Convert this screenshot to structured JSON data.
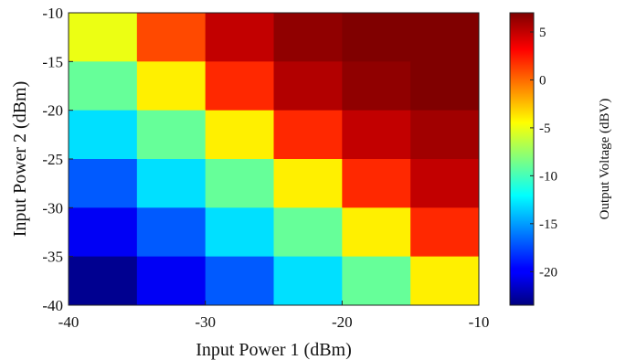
{
  "chart_data": {
    "type": "heatmap",
    "xlabel": "Input Power 1 (dBm)",
    "ylabel": "Input Power 2 (dBm)",
    "colorbar_label": "Output Voltage (dBV)",
    "xlim": [
      -40,
      -10
    ],
    "ylim": [
      -40,
      -10
    ],
    "x_ticks": [
      -40,
      -30,
      -20,
      -10
    ],
    "y_ticks": [
      -10,
      -15,
      -20,
      -25,
      -30,
      -35,
      -40
    ],
    "x_centers": [
      -37.5,
      -32.5,
      -27.5,
      -22.5,
      -17.5,
      -12.5
    ],
    "y_centers": [
      -12.5,
      -17.5,
      -22.5,
      -27.5,
      -32.5,
      -37.5
    ],
    "values": [
      [
        -5,
        1,
        5,
        6.5,
        7,
        7
      ],
      [
        -9,
        -4,
        2,
        5.5,
        6.5,
        7
      ],
      [
        -13,
        -9,
        -4,
        2,
        5,
        6
      ],
      [
        -17,
        -13,
        -9,
        -4,
        2,
        5
      ],
      [
        -20,
        -17,
        -13,
        -9,
        -4,
        2
      ],
      [
        -23,
        -20,
        -17,
        -13,
        -9,
        -4
      ]
    ],
    "colorbar_range": [
      -23.5,
      7
    ],
    "colorbar_ticks": [
      5,
      0,
      -5,
      -10,
      -15,
      -20
    ],
    "colormap": "jet",
    "grid": false
  }
}
